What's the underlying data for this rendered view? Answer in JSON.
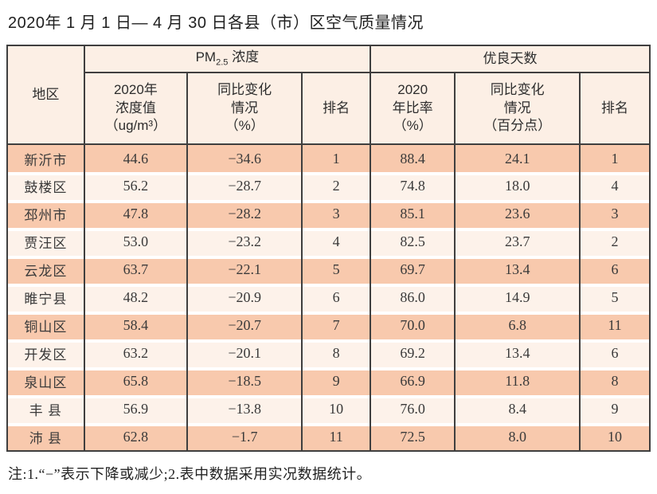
{
  "title": "2020年 1 月 1 日— 4 月 30 日各县（市）区空气质量情况",
  "table": {
    "region_header": "地区",
    "pm25_group": {
      "prefix": "PM",
      "sub": "2.5",
      "suffix": " 浓度"
    },
    "good_days_group": "优良天数",
    "subheaders": [
      "2020年\n浓度值\n（ug/m³）",
      "同比变化\n情况\n（%）",
      "排名",
      "2020\n年比率\n（%）",
      "同比变化\n情况\n（百分点）",
      "排名"
    ],
    "rows": [
      [
        "新沂市",
        "44.6",
        "−34.6",
        "1",
        "88.4",
        "24.1",
        "1"
      ],
      [
        "鼓楼区",
        "56.2",
        "−28.7",
        "2",
        "74.8",
        "18.0",
        "4"
      ],
      [
        "邳州市",
        "47.8",
        "−28.2",
        "3",
        "85.1",
        "23.6",
        "3"
      ],
      [
        "贾汪区",
        "53.0",
        "−23.2",
        "4",
        "82.5",
        "23.7",
        "2"
      ],
      [
        "云龙区",
        "63.7",
        "−22.1",
        "5",
        "69.7",
        "13.4",
        "6"
      ],
      [
        "睢宁县",
        "48.2",
        "−20.9",
        "6",
        "86.0",
        "14.9",
        "5"
      ],
      [
        "铜山区",
        "58.4",
        "−20.7",
        "7",
        "70.0",
        "6.8",
        "11"
      ],
      [
        "开发区",
        "63.2",
        "−20.1",
        "8",
        "69.2",
        "13.4",
        "6"
      ],
      [
        "泉山区",
        "65.8",
        "−18.5",
        "9",
        "66.9",
        "11.8",
        "8"
      ],
      [
        "丰 县",
        "56.9",
        "−13.8",
        "10",
        "76.0",
        "8.4",
        "9"
      ],
      [
        "沛 县",
        "62.8",
        "−1.7",
        "11",
        "72.5",
        "8.0",
        "10"
      ]
    ]
  },
  "footnote": "注:1.“−”表示下降或减少;2.表中数据采用实况数据统计。",
  "colors": {
    "row_odd": "#f8c9ad",
    "row_even": "#fdf2ea",
    "header_bg": "#fcefe5",
    "border": "#3f3f3f"
  }
}
